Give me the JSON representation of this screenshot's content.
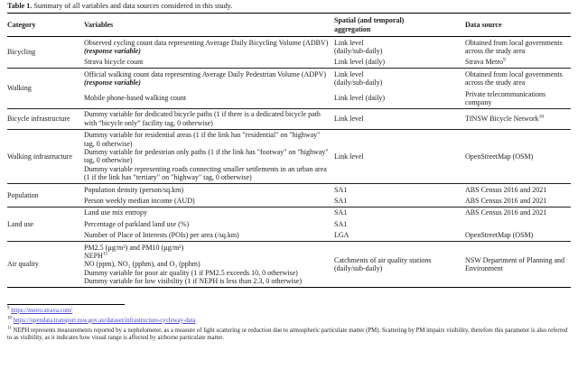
{
  "title": {
    "label": "Table 1.",
    "text": " Summary of all variables and data sources considered in this study."
  },
  "table": {
    "headers": [
      "Category",
      "Variables",
      "Spatial (and temporal)\naggregation",
      "Data source"
    ],
    "rows": [
      {
        "category": "Bicycling",
        "entries": [
          {
            "variables": [
              [
                {
                  "t": "Observed cycling count data representing Average Daily Bicycling Volume (ADBV) "
                },
                {
                  "t": "(response variable)",
                  "em": true
                }
              ]
            ],
            "spatial": [
              "Link level",
              "(daily/sub-daily)"
            ],
            "source": [
              {
                "t": "Obtained from local governments across the study area"
              }
            ]
          },
          {
            "variables": [
              [
                {
                  "t": "Strava bicycle count"
                }
              ]
            ],
            "spatial": [
              "Link level (daily)"
            ],
            "source": [
              {
                "t": "Strava Metro"
              },
              {
                "t": "9",
                "sup": true
              }
            ]
          }
        ]
      },
      {
        "category": "Walking",
        "entries": [
          {
            "variables": [
              [
                {
                  "t": "Official walking count data representing Average Daily Pedestrian Volume (ADPV) "
                },
                {
                  "t": "(response variable)",
                  "em": true
                }
              ]
            ],
            "spatial": [
              "Link level",
              "(daily/sub-daily)"
            ],
            "source": [
              {
                "t": "Obtained from local governments across the study area"
              }
            ]
          },
          {
            "variables": [
              [
                {
                  "t": "Mobile phone-based walking count"
                }
              ]
            ],
            "spatial": [
              "Link level (daily)"
            ],
            "source": [
              {
                "t": "Private telecommunications company"
              }
            ]
          }
        ]
      },
      {
        "category": "Bicycle infrastructure",
        "entries": [
          {
            "variables": [
              [
                {
                  "t": "Dummy variable for dedicated bicycle paths (1 if there is a dedicated bicycle path with “bicycle only” facility tag, 0 otherwise)"
                }
              ]
            ],
            "spatial": [
              "Link level"
            ],
            "source": [
              {
                "t": "TfNSW Bicycle Network"
              },
              {
                "t": "10",
                "sup": true
              }
            ]
          }
        ]
      },
      {
        "category": "Walking infrastructure",
        "entries": [
          {
            "variables": [
              [
                {
                  "t": "Dummy variable for residential areas (1 if the link has \"residential\" on \"highway\" tag, 0 otherwise)"
                }
              ],
              [
                {
                  "t": "Dummy variable for pedestrian only paths (1 if the link has \"footway\" on \"highway\" tag, 0 otherwise)"
                }
              ],
              [
                {
                  "t": "Dummy variable representing roads connecting smaller settlements in an urban area (1 if the link has \"tertiary\" on \"highway\" tag, 0 otherwise)"
                }
              ]
            ],
            "spatial": [
              "Link level"
            ],
            "source": [
              {
                "t": "OpenStreetMap (OSM)"
              }
            ]
          }
        ]
      },
      {
        "category": "Population",
        "entries": [
          {
            "variables": [
              [
                {
                  "t": "Population density (person/sq.km)"
                }
              ]
            ],
            "spatial": [
              "SA1"
            ],
            "source": [
              {
                "t": "ABS Census 2016 and 2021"
              }
            ]
          },
          {
            "variables": [
              [
                {
                  "t": "Person weekly median income (AUD)"
                }
              ]
            ],
            "spatial": [
              "SA1"
            ],
            "source": [
              {
                "t": "ABS Census 2016 and 2021"
              }
            ]
          }
        ]
      },
      {
        "category": "Land use",
        "entries": [
          {
            "variables": [
              [
                {
                  "t": "Land use mix entropy"
                }
              ]
            ],
            "spatial": [
              "SA1"
            ],
            "source": [
              {
                "t": "ABS Census 2016 and 2021"
              }
            ]
          },
          {
            "variables": [
              [
                {
                  "t": "Percentage of parkland land use (%)"
                }
              ]
            ],
            "spatial": [
              "SA1"
            ],
            "source": []
          },
          {
            "variables": [
              [
                {
                  "t": "Number of Place of Interests (POIs) per area (/sq.km)"
                }
              ]
            ],
            "spatial": [
              "LGA"
            ],
            "source": [
              {
                "t": "OpenStreetMap (OSM)"
              }
            ]
          }
        ]
      },
      {
        "category": "Air quality",
        "entries": [
          {
            "variables": [
              [
                {
                  "t": "PM2.5 (µg/m³) and PM10 (µg/m³)"
                }
              ],
              [
                {
                  "t": "NEPH"
                },
                {
                  "t": "11",
                  "sup": true
                }
              ],
              [
                {
                  "t": "NO (ppm), NO₂ (pphm), and O₃ (pphm)"
                }
              ],
              [
                {
                  "t": "Dummy variable for poor air quality (1 if PM2.5 exceeds 10, 0 otherwise)"
                }
              ],
              [
                {
                  "t": "Dummy variable for low visibility (1 if NEPH is less than 2.3, 0 otherwise)"
                }
              ]
            ],
            "spatial": [
              "Catchments of air quality stations",
              "(daily/sub-daily)"
            ],
            "source": [
              {
                "t": "NSW Department of Planning and Environment"
              }
            ]
          }
        ]
      }
    ]
  },
  "footnotes": [
    {
      "sup": "9",
      "runs": [
        {
          "t": "https://metro.strava.com/",
          "link": true
        }
      ]
    },
    {
      "sup": "10",
      "runs": [
        {
          "t": "https://opendata.transport.nsw.gov.au/dataset/infrastructure-cycleway-data",
          "link": true
        }
      ]
    },
    {
      "sup": "11",
      "runs": [
        {
          "t": "NEPH represents measurements reported by a nephelometer, as a measure of light scattering or reduction due to atmospheric particulate matter (PM). Scattering by PM impairs visibility, therefore this parameter is also referred to as visibility, as it indicates how visual range is affected by airborne particulate matter."
        }
      ]
    }
  ]
}
